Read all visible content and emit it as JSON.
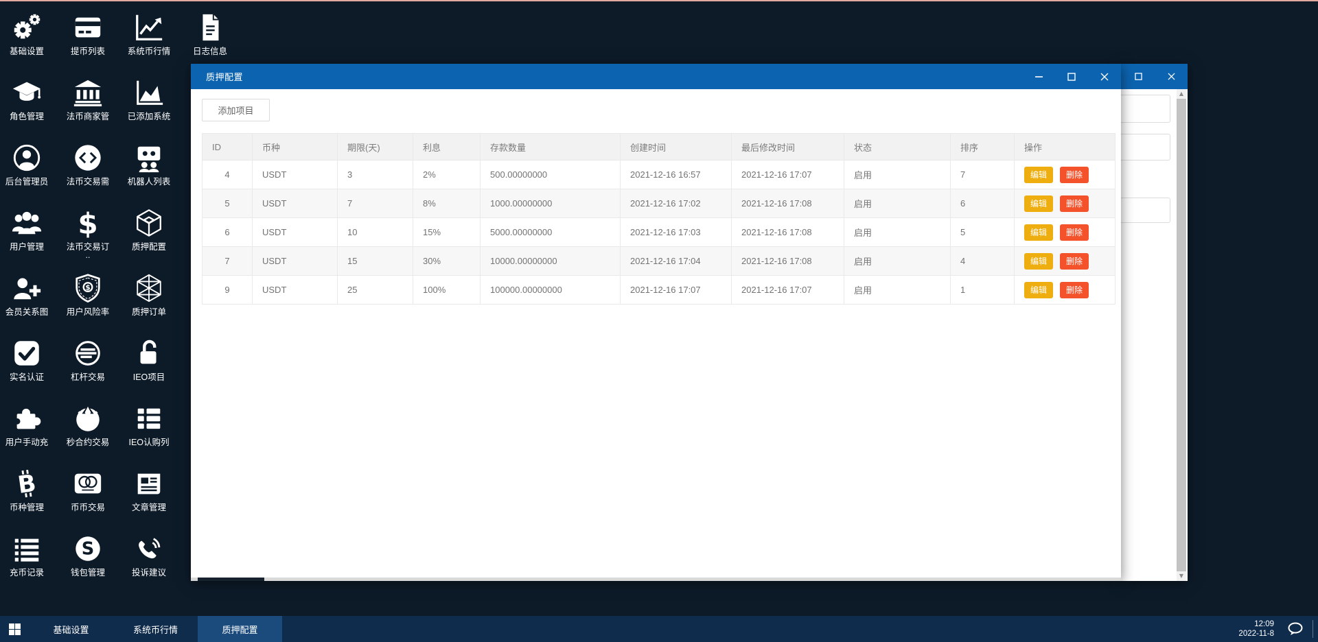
{
  "colors": {
    "desktop_bg": "#0d1b29",
    "titlebar": "#0c64b0",
    "taskbar_bg": "#102c4c",
    "taskbar_active": "#1b4b7d",
    "edit_button": "#efae10",
    "delete_button": "#f4522b"
  },
  "desktop": {
    "icons": [
      {
        "label": "基础设置",
        "icon": "gears",
        "col": 0,
        "row": 0
      },
      {
        "label": "提币列表",
        "icon": "withdraw-card",
        "col": 1,
        "row": 0
      },
      {
        "label": "系统币行情",
        "icon": "market-chart",
        "col": 2,
        "row": 0
      },
      {
        "label": "日志信息",
        "icon": "log-file",
        "col": 3,
        "row": 0
      },
      {
        "label": "角色管理",
        "icon": "role-cap",
        "col": 0,
        "row": 1
      },
      {
        "label": "法币商家管",
        "icon": "bank",
        "col": 1,
        "row": 1
      },
      {
        "label": "已添加系统",
        "icon": "area-chart",
        "col": 2,
        "row": 1
      },
      {
        "label": "后台管理员",
        "icon": "admin-user",
        "col": 0,
        "row": 2
      },
      {
        "label": "法币交易需",
        "icon": "fiat-demand",
        "col": 1,
        "row": 2
      },
      {
        "label": "机器人列表",
        "icon": "robot-list",
        "col": 2,
        "row": 2
      },
      {
        "label": "用户管理",
        "icon": "users",
        "col": 0,
        "row": 3
      },
      {
        "label": "法币交易订",
        "label2": "..",
        "icon": "dollar",
        "col": 1,
        "row": 3
      },
      {
        "label": "质押配置",
        "icon": "pledge-cube",
        "col": 2,
        "row": 3
      },
      {
        "label": "会员关系图",
        "icon": "member-graph",
        "col": 0,
        "row": 4
      },
      {
        "label": "用户风险率",
        "icon": "risk-shield",
        "col": 1,
        "row": 4
      },
      {
        "label": "质押订单",
        "icon": "hex-wire",
        "col": 2,
        "row": 4
      },
      {
        "label": "实名认证",
        "icon": "check-square",
        "col": 0,
        "row": 5
      },
      {
        "label": "杠杆交易",
        "icon": "leverage-circle",
        "col": 1,
        "row": 5
      },
      {
        "label": "IEO项目",
        "icon": "unlock",
        "col": 2,
        "row": 5
      },
      {
        "label": "用户手动充",
        "icon": "puzzle",
        "col": 0,
        "row": 6
      },
      {
        "label": "秒合约交易",
        "icon": "rebel",
        "col": 1,
        "row": 6
      },
      {
        "label": "IEO认购列",
        "icon": "th-list",
        "col": 2,
        "row": 6
      },
      {
        "label": "币种管理",
        "icon": "bitcoin",
        "col": 0,
        "row": 7
      },
      {
        "label": "币币交易",
        "icon": "mastercard",
        "col": 1,
        "row": 7
      },
      {
        "label": "文章管理",
        "icon": "newspaper",
        "col": 2,
        "row": 7
      },
      {
        "label": "充币记录",
        "icon": "list-bars",
        "col": 0,
        "row": 8
      },
      {
        "label": "钱包管理",
        "icon": "skype",
        "col": 1,
        "row": 8
      },
      {
        "label": "投诉建议",
        "icon": "phone-volume",
        "col": 2,
        "row": 8
      }
    ]
  },
  "window": {
    "title": "质押配置",
    "add_button": "添加项目",
    "table": {
      "headers": [
        "ID",
        "币种",
        "期限(天)",
        "利息",
        "存款数量",
        "创建时间",
        "最后修改时间",
        "状态",
        "排序",
        "操作"
      ],
      "rows": [
        {
          "id": "4",
          "coin": "USDT",
          "days": "3",
          "interest": "2%",
          "amount": "500.00000000",
          "created": "2021-12-16 16:57",
          "modified": "2021-12-16 17:07",
          "status": "启用",
          "sort": "7"
        },
        {
          "id": "5",
          "coin": "USDT",
          "days": "7",
          "interest": "8%",
          "amount": "1000.00000000",
          "created": "2021-12-16 17:02",
          "modified": "2021-12-16 17:08",
          "status": "启用",
          "sort": "6"
        },
        {
          "id": "6",
          "coin": "USDT",
          "days": "10",
          "interest": "15%",
          "amount": "5000.00000000",
          "created": "2021-12-16 17:03",
          "modified": "2021-12-16 17:08",
          "status": "启用",
          "sort": "5"
        },
        {
          "id": "7",
          "coin": "USDT",
          "days": "15",
          "interest": "30%",
          "amount": "10000.00000000",
          "created": "2021-12-16 17:04",
          "modified": "2021-12-16 17:08",
          "status": "启用",
          "sort": "4"
        },
        {
          "id": "9",
          "coin": "USDT",
          "days": "25",
          "interest": "100%",
          "amount": "100000.00000000",
          "created": "2021-12-16 17:07",
          "modified": "2021-12-16 17:07",
          "status": "启用",
          "sort": "1"
        }
      ],
      "actions": {
        "edit": "编辑",
        "delete": "删除"
      }
    }
  },
  "taskbar": {
    "items": [
      {
        "label": "基础设置",
        "active": false
      },
      {
        "label": "系统币行情",
        "active": false
      },
      {
        "label": "质押配置",
        "active": true
      }
    ],
    "clock": {
      "time": "12:09",
      "date": "2022-11-8"
    }
  }
}
